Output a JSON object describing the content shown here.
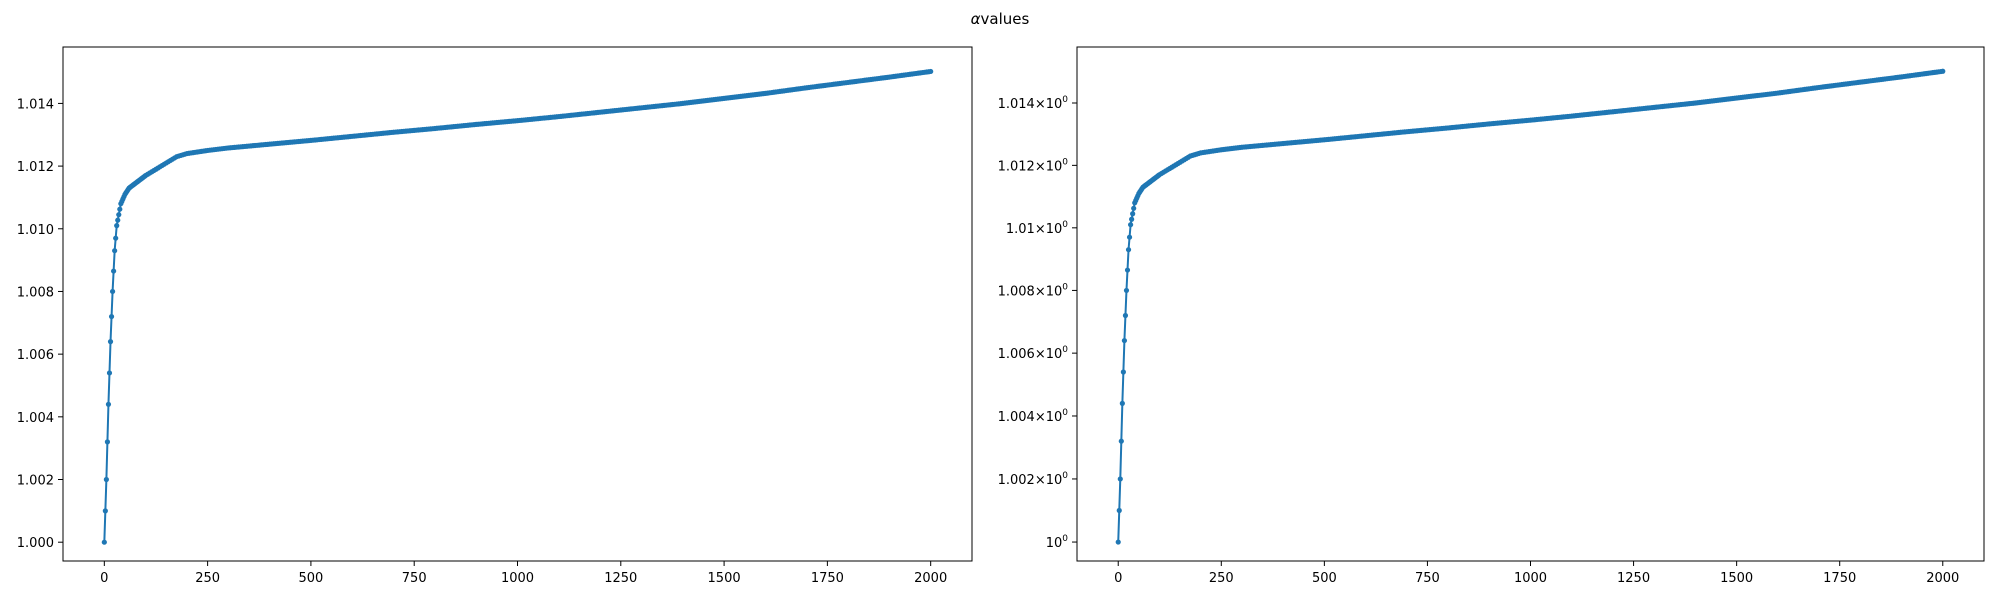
{
  "figure": {
    "title_prefix": "α",
    "title_suffix": "values"
  },
  "chart_data": [
    {
      "type": "line",
      "panel": "left",
      "yscale": "linear",
      "xlabel": "",
      "ylabel": "",
      "xlim": [
        -100,
        2100
      ],
      "ylim": [
        0.9994,
        1.0158
      ],
      "xticks": [
        0,
        250,
        500,
        750,
        1000,
        1250,
        1500,
        1750,
        2000
      ],
      "xticklabels": [
        "0",
        "250",
        "500",
        "750",
        "1000",
        "1250",
        "1500",
        "1750",
        "2000"
      ],
      "yticks": [
        1.0,
        1.002,
        1.004,
        1.006,
        1.008,
        1.01,
        1.012,
        1.014
      ],
      "yticklabels": [
        "1.000",
        "1.002",
        "1.004",
        "1.006",
        "1.008",
        "1.010",
        "1.012",
        "1.014"
      ],
      "color": "#1f77b4",
      "marker": "circle",
      "series": [
        {
          "x": [
            0,
            5,
            10,
            15,
            20,
            25,
            30,
            40,
            50,
            60,
            70,
            80,
            100,
            125,
            150,
            175,
            200,
            225,
            250,
            300,
            400,
            500,
            600,
            700,
            800,
            900,
            1000,
            1100,
            1200,
            1300,
            1400,
            1500,
            1600,
            1700,
            1800,
            1900,
            2000
          ],
          "values": [
            1.0,
            1.002,
            1.0044,
            1.0064,
            1.008,
            1.0093,
            1.0101,
            1.0108,
            1.0111,
            1.0113,
            1.0114,
            1.0115,
            1.0117,
            1.0119,
            1.0121,
            1.0123,
            1.0124,
            1.01245,
            1.0125,
            1.01258,
            1.0127,
            1.01282,
            1.01295,
            1.01308,
            1.0132,
            1.01333,
            1.01345,
            1.01358,
            1.01372,
            1.01386,
            1.014,
            1.01416,
            1.01432,
            1.0145,
            1.01467,
            1.01484,
            1.01502
          ]
        }
      ]
    },
    {
      "type": "line",
      "panel": "right",
      "yscale": "log",
      "xlabel": "",
      "ylabel": "",
      "xlim": [
        -100,
        2100
      ],
      "ylim": [
        0.9994,
        1.0158
      ],
      "xticks": [
        0,
        250,
        500,
        750,
        1000,
        1250,
        1500,
        1750,
        2000
      ],
      "xticklabels": [
        "0",
        "250",
        "500",
        "750",
        "1000",
        "1250",
        "1500",
        "1750",
        "2000"
      ],
      "yticks": [
        1.0,
        1.002,
        1.004,
        1.006,
        1.008,
        1.01,
        1.012,
        1.014
      ],
      "yticklabels_base": [
        "1",
        "1.002",
        "1.004",
        "1.006",
        "1.008",
        "1.01",
        "1.012",
        "1.014"
      ],
      "yticklabels_sup": "0",
      "yticklabels_times": "×10",
      "color": "#1f77b4",
      "marker": "circle",
      "series": [
        {
          "x": [
            0,
            5,
            10,
            15,
            20,
            25,
            30,
            40,
            50,
            60,
            70,
            80,
            100,
            125,
            150,
            175,
            200,
            225,
            250,
            300,
            400,
            500,
            600,
            700,
            800,
            900,
            1000,
            1100,
            1200,
            1300,
            1400,
            1500,
            1600,
            1700,
            1800,
            1900,
            2000
          ],
          "values": [
            1.0,
            1.002,
            1.0044,
            1.0064,
            1.008,
            1.0093,
            1.0101,
            1.0108,
            1.0111,
            1.0113,
            1.0114,
            1.0115,
            1.0117,
            1.0119,
            1.0121,
            1.0123,
            1.0124,
            1.01245,
            1.0125,
            1.01258,
            1.0127,
            1.01282,
            1.01295,
            1.01308,
            1.0132,
            1.01333,
            1.01345,
            1.01358,
            1.01372,
            1.01386,
            1.014,
            1.01416,
            1.01432,
            1.0145,
            1.01467,
            1.01484,
            1.01502
          ]
        }
      ]
    }
  ]
}
